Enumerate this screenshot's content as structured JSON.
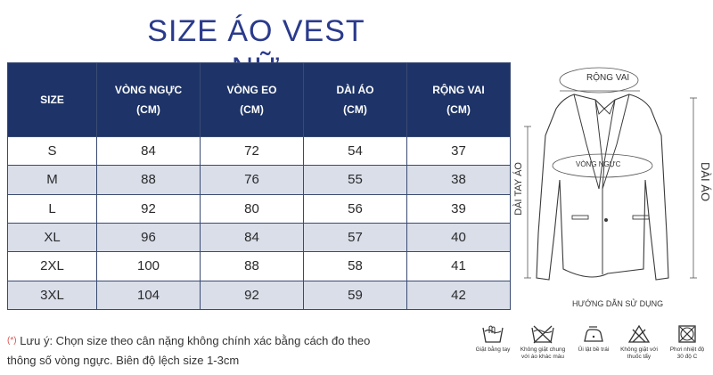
{
  "title": "SIZE ÁO VEST NỮ",
  "table": {
    "headers": [
      {
        "line1": "SIZE",
        "line2": ""
      },
      {
        "line1": "VÒNG NGỰC",
        "line2": "(CM)"
      },
      {
        "line1": "VÒNG EO",
        "line2": "(CM)"
      },
      {
        "line1": "DÀI ÁO",
        "line2": "(CM)"
      },
      {
        "line1": "RỘNG VAI",
        "line2": "(CM)"
      }
    ],
    "rows": [
      [
        "S",
        "84",
        "72",
        "54",
        "37"
      ],
      [
        "M",
        "88",
        "76",
        "55",
        "38"
      ],
      [
        "L",
        "92",
        "80",
        "56",
        "39"
      ],
      [
        "XL",
        "96",
        "84",
        "57",
        "40"
      ],
      [
        "2XL",
        "100",
        "88",
        "58",
        "41"
      ],
      [
        "3XL",
        "104",
        "92",
        "59",
        "42"
      ]
    ]
  },
  "diagram": {
    "shoulder_label": "RỘNG VAI",
    "chest_label": "VÒNG NGỰC",
    "sleeve_label": "DÀI TAY ÁO",
    "length_label": "DÀI ÁO",
    "guide_label": "HƯỚNG DẪN SỬ DỤNG"
  },
  "note": {
    "star": "(*)",
    "line1": "Lưu ý: Chọn size theo cân nặng không chính xác bằng cách đo theo",
    "line2": "thông số vòng ngực. Biên độ lệch size 1-3cm"
  },
  "care": [
    {
      "icon": "hand-wash-icon",
      "line1": "Giặt bằng tay",
      "line2": ""
    },
    {
      "icon": "wash-separately-icon",
      "line1": "Không giặt chung",
      "line2": "với áo khác màu"
    },
    {
      "icon": "iron-icon",
      "line1": "Ủi lật bề trái",
      "line2": ""
    },
    {
      "icon": "no-bleach-icon",
      "line1": "Không giặt với",
      "line2": "thuốc tẩy"
    },
    {
      "icon": "dry-icon",
      "line1": "Phơi nhiệt độ",
      "line2": "30 độ C"
    }
  ]
}
